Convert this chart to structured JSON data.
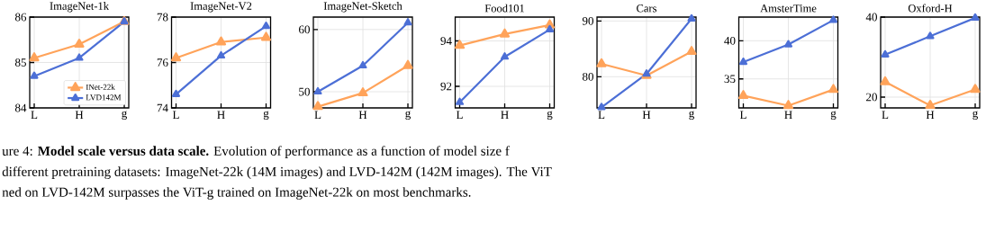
{
  "chart_data": [
    {
      "type": "line",
      "title": "ImageNet-1k",
      "categories": [
        "L",
        "H",
        "g"
      ],
      "ylim": [
        84,
        86
      ],
      "yticks": [
        84,
        85,
        86
      ],
      "grid": true,
      "legend": "bottom right",
      "marker": "triangle",
      "series": [
        {
          "name": "INet-22k",
          "color": "#ffa35a",
          "values": [
            85.1,
            85.4,
            85.9
          ]
        },
        {
          "name": "LVD142M",
          "color": "#4c6fd6",
          "values": [
            84.7,
            85.1,
            85.9
          ]
        }
      ],
      "annotations": [
        "ure 4: **Model scale versus data scale.** Evolution of performance as a function of model size f",
        "different pretraining datasets: ImageNet-22k (14M images) and LVD-142M (142M images). The ViT",
        "ned on LVD-142M surpasses the ViT-g trained on ImageNet-22k on most benchmarks."
      ]
    },
    {
      "type": "line",
      "title": "ImageNet-V2",
      "categories": [
        "L",
        "H",
        "g"
      ],
      "ylim": [
        74,
        78
      ],
      "yticks": [
        74,
        76,
        78
      ],
      "grid": true,
      "marker": "triangle",
      "series": [
        {
          "color": "#ffa35a",
          "values": [
            76.2,
            76.9,
            77.1
          ]
        },
        {
          "color": "#4c6fd6",
          "values": [
            74.6,
            76.3,
            77.6
          ]
        }
      ]
    },
    {
      "type": "line",
      "title": "ImageNet-Sketch",
      "categories": [
        "L",
        "H",
        "g"
      ],
      "ylim": [
        47.4,
        62
      ],
      "yticks": [
        50,
        60
      ],
      "grid": true,
      "marker": "triangle",
      "series": [
        {
          "color": "#ffa35a",
          "values": [
            47.6,
            49.8,
            54.2
          ]
        },
        {
          "color": "#4c6fd6",
          "values": [
            50,
            54.2,
            61.1
          ]
        }
      ]
    },
    {
      "type": "line",
      "title": "Food101",
      "categories": [
        "L",
        "H",
        "g"
      ],
      "ylim": [
        91.05,
        95.05
      ],
      "yticks": [
        92,
        94
      ],
      "grid": true,
      "marker": "triangle",
      "series": [
        {
          "color": "#ffa35a",
          "values": [
            93.8,
            94.3,
            94.7
          ]
        },
        {
          "color": "#4c6fd6",
          "values": [
            91.3,
            93.3,
            94.5
          ]
        }
      ]
    },
    {
      "type": "line",
      "title": "Cars",
      "categories": [
        "L",
        "H",
        "g"
      ],
      "ylim": [
        74.4,
        90.7
      ],
      "yticks": [
        80,
        90
      ],
      "grid": true,
      "marker": "triangle",
      "series": [
        {
          "color": "#ffa35a",
          "values": [
            82.3,
            80.2,
            84.5
          ]
        },
        {
          "color": "#4c6fd6",
          "values": [
            74.5,
            80.5,
            90.4
          ]
        }
      ]
    },
    {
      "type": "line",
      "title": "AmsterTime",
      "categories": [
        "L",
        "H",
        "g"
      ],
      "ylim": [
        31.2,
        43.1
      ],
      "yticks": [
        35,
        40
      ],
      "grid": true,
      "marker": "triangle",
      "series": [
        {
          "color": "#ffa35a",
          "values": [
            32.8,
            31.5,
            33.6
          ]
        },
        {
          "color": "#4c6fd6",
          "values": [
            37.2,
            39.5,
            42.7
          ]
        }
      ]
    },
    {
      "type": "line",
      "title": "Oxford-H",
      "categories": [
        "L",
        "H",
        "g"
      ],
      "ylim": [
        17.3,
        40
      ],
      "yticks": [
        20,
        40
      ],
      "grid": true,
      "marker": "triangle",
      "series": [
        {
          "color": "#ffa35a",
          "values": [
            23.8,
            17.9,
            21.9
          ]
        },
        {
          "color": "#4c6fd6",
          "values": [
            30.6,
            35.2,
            39.8
          ]
        }
      ]
    }
  ]
}
